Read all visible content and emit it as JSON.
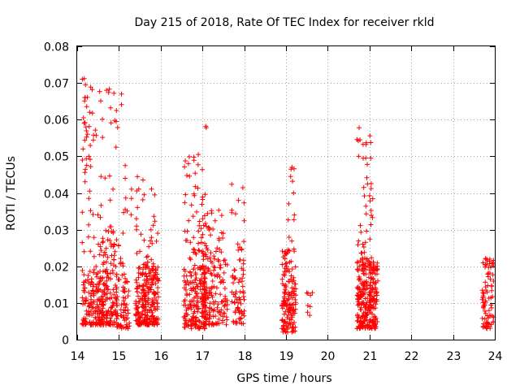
{
  "chart_data": {
    "type": "scatter",
    "title": "Day 215 of 2018, Rate Of TEC Index for receiver rkld",
    "xlabel": "GPS time / hours",
    "ylabel": "ROTI / TECUs",
    "xlim": [
      14,
      24
    ],
    "ylim": [
      0,
      0.08
    ],
    "xticks": [
      14,
      15,
      16,
      17,
      18,
      19,
      20,
      21,
      22,
      23,
      24
    ],
    "xtick_labels": [
      "14",
      "15",
      "16",
      "17",
      "18",
      "19",
      "20",
      "21",
      "22",
      "23",
      "24"
    ],
    "yticks": [
      0,
      0.01,
      0.02,
      0.03,
      0.04,
      0.05,
      0.06,
      0.07,
      0.08
    ],
    "ytick_labels": [
      "0",
      "0.01",
      "0.02",
      "0.03",
      "0.04",
      "0.05",
      "0.06",
      "0.07",
      "0.08"
    ],
    "grid": true,
    "marker": "+",
    "series": [
      {
        "name": "ROTI",
        "color": "#ff0000",
        "clusters": [
          {
            "x": [
              14.12,
              14.95
            ],
            "y": [
              0.004,
              0.019
            ],
            "n": 260
          },
          {
            "x": [
              14.12,
              14.95
            ],
            "y": [
              0.019,
              0.045
            ],
            "n": 45
          },
          {
            "x": [
              14.12,
              14.4
            ],
            "y": [
              0.045,
              0.072
            ],
            "n": 22
          },
          {
            "x": [
              14.4,
              15.1
            ],
            "y": [
              0.055,
              0.069
            ],
            "n": 12
          },
          {
            "x": [
              14.5,
              15.1
            ],
            "y": [
              0.02,
              0.03
            ],
            "n": 25
          },
          {
            "x": [
              14.95,
              15.25
            ],
            "y": [
              0.003,
              0.018
            ],
            "n": 60
          },
          {
            "x": [
              15.1,
              15.35
            ],
            "y": [
              0.03,
              0.049
            ],
            "n": 6
          },
          {
            "x": [
              15.4,
              15.95
            ],
            "y": [
              0.004,
              0.02
            ],
            "n": 240
          },
          {
            "x": [
              15.4,
              15.95
            ],
            "y": [
              0.02,
              0.047
            ],
            "n": 35
          },
          {
            "x": [
              16.55,
              17.1
            ],
            "y": [
              0.003,
              0.02
            ],
            "n": 180
          },
          {
            "x": [
              16.55,
              17.1
            ],
            "y": [
              0.02,
              0.05
            ],
            "n": 60
          },
          {
            "x": [
              17.0,
              17.6
            ],
            "y": [
              0.004,
              0.022
            ],
            "n": 130
          },
          {
            "x": [
              17.0,
              17.5
            ],
            "y": [
              0.022,
              0.036
            ],
            "n": 30
          },
          {
            "x": [
              17.7,
              18.0
            ],
            "y": [
              0.004,
              0.02
            ],
            "n": 60
          },
          {
            "x": [
              17.7,
              18.0
            ],
            "y": [
              0.02,
              0.044
            ],
            "n": 18
          },
          {
            "x": [
              18.9,
              19.25
            ],
            "y": [
              0.002,
              0.025
            ],
            "n": 150
          },
          {
            "x": [
              19.0,
              19.2
            ],
            "y": [
              0.025,
              0.047
            ],
            "n": 7
          },
          {
            "x": [
              19.5,
              19.6
            ],
            "y": [
              0.005,
              0.013
            ],
            "n": 6
          },
          {
            "x": [
              20.7,
              21.2
            ],
            "y": [
              0.003,
              0.022
            ],
            "n": 260
          },
          {
            "x": [
              20.7,
              21.1
            ],
            "y": [
              0.022,
              0.058
            ],
            "n": 40
          },
          {
            "x": [
              23.7,
              23.98
            ],
            "y": [
              0.003,
              0.023
            ],
            "n": 80
          }
        ],
        "points": [
          [
            14.17,
            0.0712
          ],
          [
            14.2,
            0.0695
          ],
          [
            14.36,
            0.0682
          ],
          [
            14.77,
            0.0683
          ],
          [
            14.88,
            0.0672
          ],
          [
            14.19,
            0.066
          ],
          [
            15.06,
            0.067
          ],
          [
            15.06,
            0.0641
          ],
          [
            14.3,
            0.062
          ],
          [
            14.15,
            0.0605
          ],
          [
            14.17,
            0.059
          ],
          [
            14.21,
            0.058
          ],
          [
            14.25,
            0.056
          ],
          [
            14.9,
            0.0598
          ],
          [
            14.94,
            0.0625
          ],
          [
            17.08,
            0.0582
          ],
          [
            17.09,
            0.0578
          ],
          [
            20.75,
            0.0578
          ],
          [
            20.77,
            0.0545
          ],
          [
            21.01,
            0.0556
          ],
          [
            14.14,
            0.052
          ],
          [
            14.93,
            0.0525
          ],
          [
            14.28,
            0.05
          ],
          [
            16.9,
            0.0505
          ],
          [
            20.74,
            0.05
          ],
          [
            21.03,
            0.0495
          ],
          [
            15.15,
            0.0475
          ],
          [
            15.15,
            0.044
          ],
          [
            19.12,
            0.0465
          ],
          [
            19.11,
            0.0445
          ],
          [
            19.18,
            0.04
          ],
          [
            15.3,
            0.0385
          ],
          [
            19.2,
            0.034
          ],
          [
            19.19,
            0.0327
          ],
          [
            19.63,
            0.0128
          ],
          [
            19.58,
            0.009
          ]
        ]
      }
    ]
  }
}
